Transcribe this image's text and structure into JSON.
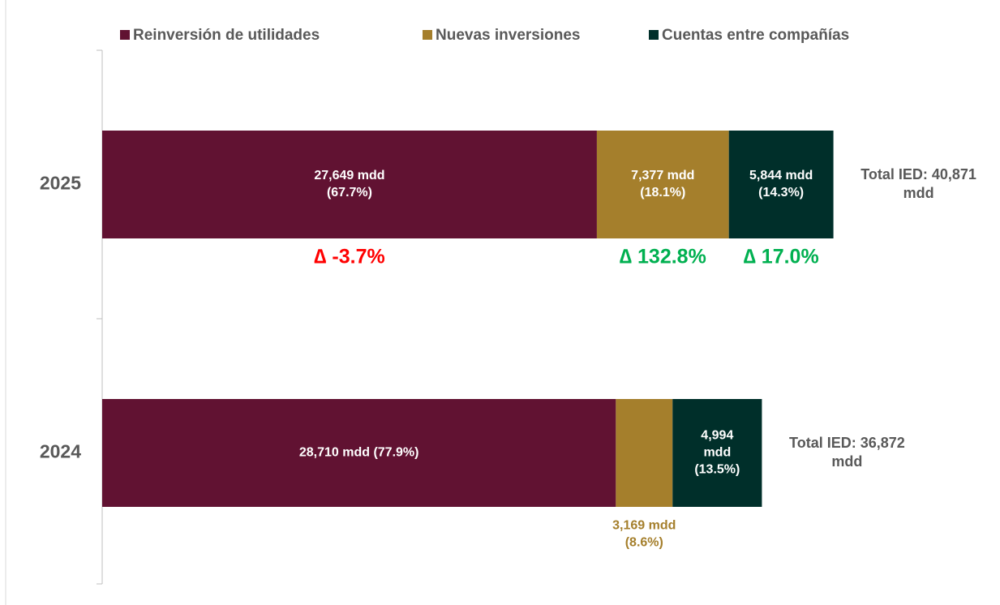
{
  "chart_data": {
    "type": "bar",
    "orientation": "horizontal",
    "stacked": true,
    "categories": [
      "2025",
      "2024"
    ],
    "xlim": [
      0,
      50000
    ],
    "series": [
      {
        "name": "Reinversión de utilidades",
        "color": "#611232",
        "values": [
          27649,
          28710
        ],
        "value_labels": [
          [
            "27,649 mdd",
            "(67.7%)"
          ],
          [
            "28,710 mdd (77.9%)"
          ]
        ]
      },
      {
        "name": "Nuevas inversiones",
        "color": "#a57f2c",
        "values": [
          7377,
          3169
        ],
        "value_labels": [
          [
            "7,377 mdd",
            "(18.1%)"
          ],
          [
            "3,169 mdd",
            "(8.6%)"
          ]
        ]
      },
      {
        "name": "Cuentas entre compañías",
        "color": "#002f2a",
        "values": [
          5844,
          4994
        ],
        "value_labels": [
          [
            "5,844 mdd",
            "(14.3%)"
          ],
          [
            "4,994",
            "mdd",
            "(13.5%)"
          ]
        ]
      }
    ],
    "total_labels": [
      [
        "Total IED: 40,871",
        "mdd"
      ],
      [
        "Total IED: 36,872",
        "mdd"
      ]
    ],
    "annotations": [
      {
        "text": "∆ -3.7%",
        "color": "#ff0000"
      },
      {
        "text": "∆ 132.8%",
        "color": "#00b050"
      },
      {
        "text": "∆ 17.0%",
        "color": "#00b050"
      }
    ]
  }
}
